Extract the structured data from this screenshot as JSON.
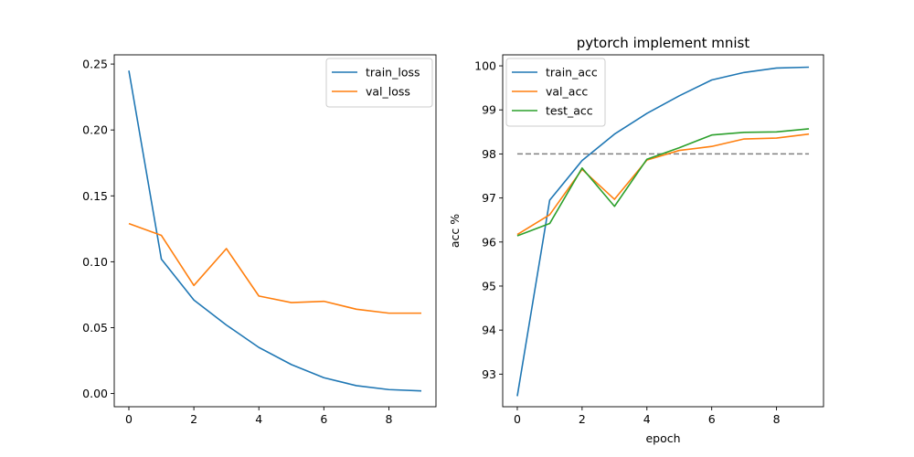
{
  "chart_data": [
    {
      "type": "line",
      "title": "",
      "xlabel": "",
      "ylabel": "",
      "x": [
        0,
        1,
        2,
        3,
        4,
        5,
        6,
        7,
        8,
        9
      ],
      "xlim": [
        -0.45,
        9.45
      ],
      "ylim": [
        -0.01,
        0.257
      ],
      "xticks": [
        0,
        2,
        4,
        6,
        8
      ],
      "yticks": [
        0.0,
        0.05,
        0.1,
        0.15,
        0.2,
        0.25
      ],
      "xtick_labels": [
        "0",
        "2",
        "4",
        "6",
        "8"
      ],
      "ytick_labels": [
        "0.00",
        "0.05",
        "0.10",
        "0.15",
        "0.20",
        "0.25"
      ],
      "grid": false,
      "legend_position": "top-right",
      "series": [
        {
          "name": "train_loss",
          "color": "#1f77b4",
          "values": [
            0.245,
            0.102,
            0.071,
            0.052,
            0.035,
            0.022,
            0.012,
            0.006,
            0.003,
            0.002
          ]
        },
        {
          "name": "val_loss",
          "color": "#ff7f0e",
          "values": [
            0.129,
            0.12,
            0.082,
            0.11,
            0.074,
            0.069,
            0.07,
            0.064,
            0.061,
            0.061
          ]
        }
      ]
    },
    {
      "type": "line",
      "title": "pytorch implement mnist",
      "xlabel": "epoch",
      "ylabel": "acc %",
      "x": [
        0,
        1,
        2,
        3,
        4,
        5,
        6,
        7,
        8,
        9
      ],
      "xlim": [
        -0.45,
        9.45
      ],
      "ylim": [
        92.26,
        100.25
      ],
      "xticks": [
        0,
        2,
        4,
        6,
        8
      ],
      "yticks": [
        93,
        94,
        95,
        96,
        97,
        98,
        99,
        100
      ],
      "xtick_labels": [
        "0",
        "2",
        "4",
        "6",
        "8"
      ],
      "ytick_labels": [
        "93",
        "94",
        "95",
        "96",
        "97",
        "98",
        "99",
        "100"
      ],
      "grid": false,
      "legend_position": "top-left",
      "reference_line": {
        "y": 98,
        "style": "dashed",
        "color": "#808080"
      },
      "series": [
        {
          "name": "train_acc",
          "color": "#1f77b4",
          "values": [
            92.5,
            96.95,
            97.85,
            98.45,
            98.92,
            99.32,
            99.68,
            99.85,
            99.95,
            99.97
          ]
        },
        {
          "name": "val_acc",
          "color": "#ff7f0e",
          "values": [
            96.17,
            96.62,
            97.65,
            96.97,
            97.86,
            98.08,
            98.17,
            98.34,
            98.36,
            98.45
          ]
        },
        {
          "name": "test_acc",
          "color": "#2ca02c",
          "values": [
            96.14,
            96.42,
            97.68,
            96.81,
            97.88,
            98.14,
            98.43,
            98.49,
            98.5,
            98.57
          ]
        }
      ]
    }
  ]
}
